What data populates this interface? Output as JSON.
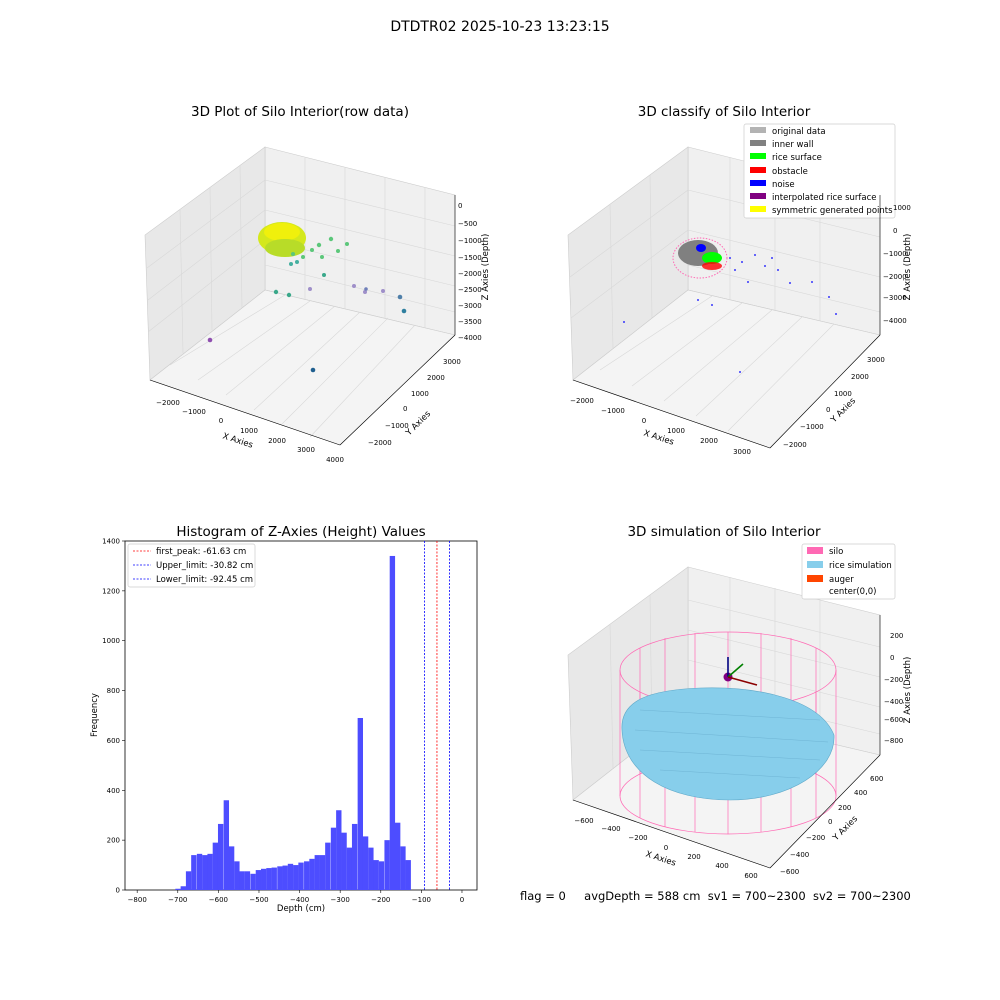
{
  "suptitle": "DTDTR02 2025-10-23 13:23:15",
  "footer": {
    "flag": "flag = 0",
    "avg": "avgDepth = 588 cm",
    "sv1": "sv1 = 700~2300",
    "sv2": "sv2 = 700~2300"
  },
  "panels": {
    "raw": {
      "title": "3D Plot of Silo Interior(row data)",
      "xlabel": "X Axies",
      "ylabel": "Y Axies",
      "zlabel": "Z Axies (Depth)",
      "xticks": [
        "-2000",
        "-1000",
        "0",
        "1000",
        "2000",
        "3000",
        "4000"
      ],
      "yticks": [
        "-2000",
        "-1000",
        "0",
        "1000",
        "2000",
        "3000"
      ],
      "zticks": [
        "0",
        "-500",
        "-1000",
        "-1500",
        "-2000",
        "-2500",
        "-3000",
        "-3500",
        "-4000"
      ]
    },
    "classify": {
      "title": "3D classify of Silo Interior",
      "xlabel": "X Axies",
      "ylabel": "Y Axies",
      "zlabel": "Z Axies (Depth)",
      "xticks": [
        "-2000",
        "-1000",
        "0",
        "1000",
        "2000",
        "3000"
      ],
      "yticks": [
        "-2000",
        "-1000",
        "0",
        "1000",
        "2000",
        "3000"
      ],
      "zticks": [
        "1000",
        "0",
        "-1000",
        "-2000",
        "-3000",
        "-4000"
      ],
      "legend": [
        {
          "label": "original data",
          "color": "#b3b3b3"
        },
        {
          "label": "inner wall",
          "color": "#808080"
        },
        {
          "label": "rice surface",
          "color": "#00ff00"
        },
        {
          "label": "obstacle",
          "color": "#ff0000"
        },
        {
          "label": "noise",
          "color": "#0000ff"
        },
        {
          "label": "interpolated rice surface",
          "color": "#800080"
        },
        {
          "label": "symmetric generated points",
          "color": "#ffff00"
        }
      ]
    },
    "simulation": {
      "title": "3D simulation of Silo Interior",
      "xlabel": "X Axies",
      "ylabel": "Y Axies",
      "zlabel": "Z Axies (Depth)",
      "xticks": [
        "-600",
        "-400",
        "-200",
        "0",
        "200",
        "400",
        "600"
      ],
      "yticks": [
        "-600",
        "-400",
        "-200",
        "0",
        "200",
        "400",
        "600"
      ],
      "zticks": [
        "200",
        "0",
        "-200",
        "-400",
        "-600",
        "-800"
      ],
      "legend": [
        {
          "label": "silo",
          "color": "#ff69b4"
        },
        {
          "label": "rice simulation",
          "color": "#87ceeb"
        },
        {
          "label": "auger",
          "color": "#ff4500"
        },
        {
          "label": "center(0,0)",
          "color": "#ffffff"
        }
      ]
    }
  },
  "chart_data": {
    "type": "bar",
    "title": "Histogram of Z-Axies (Height) Values",
    "xlabel": "Depth (cm)",
    "ylabel": "Frequency",
    "xlim": [
      -800,
      0
    ],
    "ylim": [
      0,
      1400
    ],
    "xticks": [
      -800,
      -700,
      -600,
      -500,
      -400,
      -300,
      -200,
      -100,
      0
    ],
    "yticks": [
      0,
      200,
      400,
      600,
      800,
      1000,
      1200,
      1400
    ],
    "bin_width": 13.2,
    "bins_start": [
      -706,
      -693,
      -680,
      -667,
      -653,
      -640,
      -627,
      -614,
      -601,
      -587,
      -574,
      -561,
      -548,
      -535,
      -521,
      -508,
      -495,
      -482,
      -469,
      -455,
      -442,
      -429,
      -416,
      -403,
      -389,
      -376,
      -363,
      -350,
      -337,
      -323,
      -310,
      -297,
      -284,
      -271,
      -257,
      -244,
      -231,
      -218,
      -205,
      -191,
      -178,
      -165,
      -152,
      -139,
      -125,
      -112,
      -99,
      -86,
      -73,
      -59,
      -46,
      -33,
      -20
    ],
    "values": [
      5,
      15,
      75,
      140,
      145,
      140,
      145,
      190,
      265,
      360,
      175,
      115,
      75,
      75,
      65,
      80,
      85,
      88,
      90,
      95,
      98,
      105,
      100,
      110,
      115,
      125,
      140,
      140,
      190,
      250,
      320,
      230,
      170,
      265,
      690,
      215,
      170,
      120,
      115,
      200,
      1340,
      270,
      175,
      120,
      0,
      0,
      0,
      0,
      0,
      0,
      0,
      0,
      0
    ],
    "lines": [
      {
        "name": "first_peak: -61.63 cm",
        "x": -61.63,
        "color": "#ff0000"
      },
      {
        "name": "Upper_limit: -30.82 cm",
        "x": -30.82,
        "color": "#0000ff"
      },
      {
        "name": "Lower_limit: -92.45 cm",
        "x": -92.45,
        "color": "#0000ff"
      }
    ]
  }
}
